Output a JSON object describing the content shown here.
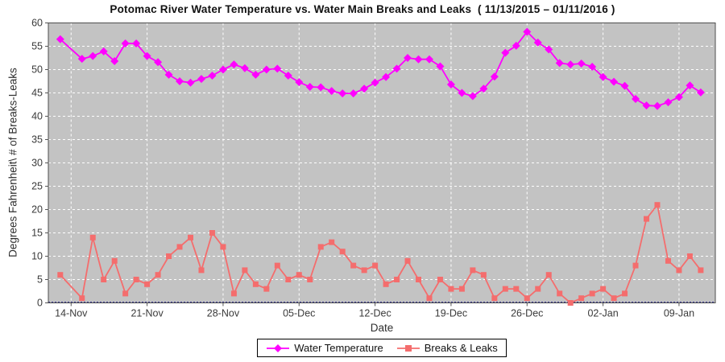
{
  "chart_data": {
    "type": "line",
    "title": "Potomac River Water Temperature vs. Water Main Breaks and Leaks  ( 11/13/2015 – 01/11/2016 )",
    "xlabel": "Date",
    "ylabel": "Degrees Fahrenheit\\ # of Breaks-Leaks",
    "ylim": [
      0,
      60
    ],
    "ytick_step": 5,
    "grid": true,
    "legend_position": "bottom",
    "plot_bg": "#c3c3c3",
    "gridline_color": "#ffffff",
    "zero_baseline_color": "#3c3c96",
    "x_dates": [
      "11/13",
      "11/14",
      "11/15",
      "11/16",
      "11/17",
      "11/18",
      "11/19",
      "11/20",
      "11/21",
      "11/22",
      "11/23",
      "11/24",
      "11/25",
      "11/26",
      "11/27",
      "11/28",
      "11/29",
      "11/30",
      "12/01",
      "12/02",
      "12/03",
      "12/04",
      "12/05",
      "12/06",
      "12/07",
      "12/08",
      "12/09",
      "12/10",
      "12/11",
      "12/12",
      "12/13",
      "12/14",
      "12/15",
      "12/16",
      "12/17",
      "12/18",
      "12/19",
      "12/20",
      "12/21",
      "12/22",
      "12/23",
      "12/24",
      "12/25",
      "12/26",
      "12/27",
      "12/28",
      "12/29",
      "12/30",
      "12/31",
      "01/01",
      "01/02",
      "01/03",
      "01/04",
      "01/05",
      "01/06",
      "01/07",
      "01/08",
      "01/09",
      "01/10",
      "01/11"
    ],
    "x_tick_labels": [
      "14-Nov",
      "21-Nov",
      "28-Nov",
      "05-Dec",
      "12-Dec",
      "19-Dec",
      "26-Dec",
      "02-Jan",
      "09-Jan"
    ],
    "x_tick_indices": [
      1,
      8,
      15,
      22,
      29,
      36,
      43,
      50,
      57
    ],
    "series": [
      {
        "name": "Water Temperature",
        "color": "#ff00ff",
        "marker": "diamond",
        "values": [
          56.5,
          null,
          52.3,
          52.9,
          53.9,
          51.8,
          55.6,
          55.6,
          52.9,
          51.6,
          48.9,
          47.5,
          47.2,
          48.0,
          48.7,
          50.0,
          51.1,
          50.3,
          48.9,
          50.0,
          50.2,
          48.7,
          47.3,
          46.3,
          46.2,
          45.4,
          44.9,
          44.9,
          45.9,
          47.2,
          48.4,
          50.2,
          52.5,
          52.2,
          52.2,
          50.7,
          46.8,
          45.0,
          44.3,
          45.9,
          48.5,
          53.6,
          55.1,
          58.1,
          55.8,
          54.3,
          51.4,
          51.1,
          51.3,
          50.6,
          48.4,
          47.4,
          46.5,
          43.7,
          42.3,
          42.2,
          43.0,
          44.1,
          46.6,
          45.1
        ]
      },
      {
        "name": "Breaks & Leaks",
        "color": "#f46d6d",
        "marker": "square",
        "values": [
          6,
          null,
          1,
          14,
          5,
          9,
          2,
          5,
          4,
          6,
          10,
          12,
          14,
          7,
          15,
          12,
          2,
          7,
          4,
          3,
          8,
          5,
          6,
          5,
          12,
          13,
          11,
          8,
          7,
          8,
          4,
          5,
          9,
          5,
          1,
          5,
          3,
          3,
          7,
          6,
          1,
          3,
          3,
          1,
          3,
          6,
          2,
          0,
          1,
          2,
          3,
          1,
          2,
          8,
          18,
          21,
          9,
          7,
          10,
          7
        ]
      }
    ]
  }
}
